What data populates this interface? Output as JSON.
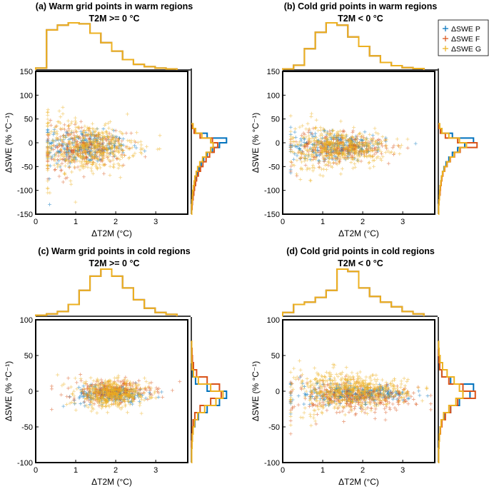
{
  "chart_data": [
    {
      "type": "scatter",
      "title": "(a) Warm grid points in warm regions",
      "subtitle": "T2M >= 0 °C",
      "xlabel": "ΔT2M (°C)",
      "ylabel": "ΔSWE (% °C⁻¹)",
      "xlim": [
        0,
        3.8
      ],
      "ylim": [
        -150,
        150
      ],
      "xticks": [
        0,
        1,
        2,
        3
      ],
      "yticks": [
        -150,
        -100,
        -50,
        0,
        50,
        100,
        150
      ],
      "series": [
        {
          "name": "ΔSWE P",
          "cx": 1.2,
          "sx": 0.55,
          "cy": -8,
          "sy": 20,
          "n": 260,
          "xrange": [
            0.3,
            3.4
          ]
        },
        {
          "name": "ΔSWE F",
          "cx": 1.2,
          "sx": 0.55,
          "cy": -12,
          "sy": 24,
          "n": 260,
          "xrange": [
            0.3,
            3.4
          ]
        },
        {
          "name": "ΔSWE G",
          "cx": 1.3,
          "sx": 0.6,
          "cy": -10,
          "sy": 30,
          "n": 520,
          "xrange": [
            0.3,
            3.6
          ]
        }
      ],
      "x_histogram": [
        0.04,
        0.85,
        0.95,
        1.0,
        0.98,
        0.78,
        0.58,
        0.4,
        0.22,
        0.12,
        0.07,
        0.04,
        0.02
      ],
      "y_histogram": [
        {
          "name": "ΔSWE P",
          "bins": [
            -150,
            -140,
            -130,
            -120,
            -110,
            -100,
            -90,
            -80,
            -70,
            -60,
            -50,
            -40,
            -30,
            -20,
            -10,
            0,
            10,
            20,
            30,
            40
          ],
          "counts": [
            0.01,
            0.02,
            0.03,
            0.04,
            0.06,
            0.08,
            0.1,
            0.13,
            0.17,
            0.22,
            0.28,
            0.35,
            0.45,
            0.6,
            0.8,
            1.0,
            0.45,
            0.12,
            0.04
          ]
        },
        {
          "name": "ΔSWE F",
          "bins": [
            -150,
            -140,
            -130,
            -120,
            -110,
            -100,
            -90,
            -80,
            -70,
            -60,
            -50,
            -40,
            -30,
            -20,
            -10,
            0,
            10,
            20,
            30,
            40
          ],
          "counts": [
            0.01,
            0.02,
            0.03,
            0.05,
            0.07,
            0.09,
            0.12,
            0.15,
            0.2,
            0.26,
            0.33,
            0.42,
            0.52,
            0.65,
            0.75,
            0.6,
            0.25,
            0.08,
            0.03
          ]
        },
        {
          "name": "ΔSWE G",
          "bins": [
            -150,
            -140,
            -130,
            -120,
            -110,
            -100,
            -90,
            -80,
            -70,
            -60,
            -50,
            -40,
            -30,
            -20,
            -10,
            0,
            10,
            20,
            30,
            40
          ],
          "counts": [
            0.01,
            0.01,
            0.02,
            0.03,
            0.04,
            0.06,
            0.08,
            0.1,
            0.14,
            0.18,
            0.24,
            0.32,
            0.42,
            0.55,
            0.62,
            0.55,
            0.3,
            0.12,
            0.05
          ]
        }
      ]
    },
    {
      "type": "scatter",
      "title": "(b) Cold grid points in warm regions",
      "subtitle": "T2M < 0 °C",
      "xlabel": "ΔT2M (°C)",
      "ylabel": "ΔSWE (% °C⁻¹)",
      "xlim": [
        0,
        3.8
      ],
      "ylim": [
        -150,
        150
      ],
      "xticks": [
        0,
        1,
        2,
        3
      ],
      "yticks": [
        -150,
        -100,
        -50,
        0,
        50,
        100,
        150
      ],
      "series": [
        {
          "name": "ΔSWE P",
          "cx": 1.4,
          "sx": 0.6,
          "cy": -6,
          "sy": 16,
          "n": 260,
          "xrange": [
            0.2,
            3.5
          ]
        },
        {
          "name": "ΔSWE F",
          "cx": 1.4,
          "sx": 0.6,
          "cy": -10,
          "sy": 18,
          "n": 260,
          "xrange": [
            0.2,
            3.5
          ]
        },
        {
          "name": "ΔSWE G",
          "cx": 1.4,
          "sx": 0.6,
          "cy": -10,
          "sy": 24,
          "n": 520,
          "xrange": [
            0.2,
            3.6
          ]
        }
      ],
      "x_histogram": [
        0.02,
        0.1,
        0.45,
        0.8,
        1.0,
        0.95,
        0.7,
        0.5,
        0.3,
        0.16,
        0.09,
        0.05,
        0.03
      ],
      "y_histogram": [
        {
          "name": "ΔSWE P",
          "bins": [
            -150,
            -140,
            -130,
            -120,
            -110,
            -100,
            -90,
            -80,
            -70,
            -60,
            -50,
            -40,
            -30,
            -20,
            -10,
            0,
            10,
            20,
            30,
            40
          ],
          "counts": [
            0.01,
            0.01,
            0.02,
            0.03,
            0.04,
            0.05,
            0.07,
            0.09,
            0.12,
            0.16,
            0.22,
            0.3,
            0.4,
            0.55,
            0.75,
            1.0,
            0.4,
            0.1,
            0.03
          ]
        },
        {
          "name": "ΔSWE F",
          "bins": [
            -150,
            -140,
            -130,
            -120,
            -110,
            -100,
            -90,
            -80,
            -70,
            -60,
            -50,
            -40,
            -30,
            -20,
            -10,
            0,
            10,
            20,
            30,
            40
          ],
          "counts": [
            0.01,
            0.01,
            0.02,
            0.03,
            0.05,
            0.06,
            0.08,
            0.1,
            0.13,
            0.18,
            0.25,
            0.34,
            0.46,
            0.62,
            1.1,
            0.55,
            0.2,
            0.06,
            0.02
          ]
        },
        {
          "name": "ΔSWE G",
          "bins": [
            -150,
            -140,
            -130,
            -120,
            -110,
            -100,
            -90,
            -80,
            -70,
            -60,
            -50,
            -40,
            -30,
            -20,
            -10,
            0,
            10,
            20,
            30,
            40
          ],
          "counts": [
            0.01,
            0.01,
            0.02,
            0.03,
            0.04,
            0.05,
            0.07,
            0.09,
            0.12,
            0.17,
            0.24,
            0.33,
            0.45,
            0.6,
            0.8,
            0.6,
            0.3,
            0.1,
            0.04
          ]
        }
      ]
    },
    {
      "type": "scatter",
      "title": "(c) Warm grid points in cold regions",
      "subtitle": "T2M >= 0 °C",
      "xlabel": "ΔT2M (°C)",
      "ylabel": "ΔSWE (% °C⁻¹)",
      "xlim": [
        0,
        3.8
      ],
      "ylim": [
        -100,
        100
      ],
      "xticks": [
        0,
        1,
        2,
        3
      ],
      "yticks": [
        -100,
        -50,
        0,
        50,
        100
      ],
      "series": [
        {
          "name": "ΔSWE P",
          "cx": 1.9,
          "sx": 0.45,
          "cy": -4,
          "sy": 8,
          "n": 220,
          "xrange": [
            0.4,
            3.5
          ]
        },
        {
          "name": "ΔSWE F",
          "cx": 1.9,
          "sx": 0.5,
          "cy": 0,
          "sy": 10,
          "n": 260,
          "xrange": [
            0.4,
            3.6
          ]
        },
        {
          "name": "ΔSWE G",
          "cx": 1.9,
          "sx": 0.45,
          "cy": -4,
          "sy": 12,
          "n": 460,
          "xrange": [
            0.4,
            3.5
          ]
        }
      ],
      "x_histogram": [
        0.02,
        0.05,
        0.1,
        0.25,
        0.55,
        0.85,
        1.0,
        0.85,
        0.6,
        0.35,
        0.17,
        0.08,
        0.04
      ],
      "y_histogram": [
        {
          "name": "ΔSWE P",
          "bins": [
            -100,
            -90,
            -80,
            -70,
            -60,
            -50,
            -40,
            -30,
            -20,
            -10,
            0,
            10,
            20,
            30,
            40,
            50,
            60,
            70
          ],
          "counts": [
            0.01,
            0.01,
            0.02,
            0.03,
            0.05,
            0.1,
            0.2,
            0.45,
            0.8,
            1.0,
            0.45,
            0.12,
            0.04,
            0.02,
            0.01,
            0.01,
            0.01
          ]
        },
        {
          "name": "ΔSWE F",
          "bins": [
            -100,
            -90,
            -80,
            -70,
            -60,
            -50,
            -40,
            -30,
            -20,
            -10,
            0,
            10,
            20,
            30,
            40,
            50,
            60,
            70
          ],
          "counts": [
            0.01,
            0.01,
            0.01,
            0.02,
            0.03,
            0.05,
            0.1,
            0.25,
            0.55,
            0.85,
            0.8,
            0.45,
            0.15,
            0.06,
            0.03,
            0.02,
            0.01
          ]
        },
        {
          "name": "ΔSWE G",
          "bins": [
            -100,
            -90,
            -80,
            -70,
            -60,
            -50,
            -40,
            -30,
            -20,
            -10,
            0,
            10,
            20,
            30,
            40,
            50,
            60,
            70
          ],
          "counts": [
            0.01,
            0.01,
            0.02,
            0.03,
            0.05,
            0.09,
            0.18,
            0.38,
            0.7,
            0.9,
            0.55,
            0.2,
            0.06,
            0.02,
            0.01,
            0.01,
            0.01
          ]
        }
      ]
    },
    {
      "type": "scatter",
      "title": "(d) Cold grid points in cold regions",
      "subtitle": "T2M < 0 °C",
      "xlabel": "ΔT2M (°C)",
      "ylabel": "ΔSWE (% °C⁻¹)",
      "xlim": [
        0,
        3.8
      ],
      "ylim": [
        -100,
        100
      ],
      "xticks": [
        0,
        1,
        2,
        3
      ],
      "yticks": [
        -100,
        -50,
        0,
        50,
        100
      ],
      "series": [
        {
          "name": "ΔSWE P",
          "cx": 1.8,
          "sx": 0.7,
          "cy": -4,
          "sy": 8,
          "n": 280,
          "xrange": [
            0.2,
            3.7
          ]
        },
        {
          "name": "ΔSWE F",
          "cx": 1.8,
          "sx": 0.75,
          "cy": -8,
          "sy": 14,
          "n": 320,
          "xrange": [
            0.2,
            3.7
          ]
        },
        {
          "name": "ΔSWE G",
          "cx": 1.7,
          "sx": 0.7,
          "cy": 0,
          "sy": 16,
          "n": 600,
          "xrange": [
            0.2,
            3.6
          ]
        }
      ],
      "x_histogram": [
        0.08,
        0.25,
        0.3,
        0.4,
        0.55,
        1.0,
        0.95,
        0.6,
        0.42,
        0.3,
        0.2,
        0.1,
        0.05
      ],
      "y_histogram": [
        {
          "name": "ΔSWE P",
          "bins": [
            -100,
            -90,
            -80,
            -70,
            -60,
            -50,
            -40,
            -30,
            -20,
            -10,
            0,
            10,
            20,
            30,
            40,
            50,
            60,
            70
          ],
          "counts": [
            0.01,
            0.01,
            0.02,
            0.03,
            0.05,
            0.09,
            0.18,
            0.35,
            0.6,
            0.9,
            1.0,
            0.35,
            0.1,
            0.04,
            0.02,
            0.01,
            0.01
          ]
        },
        {
          "name": "ΔSWE F",
          "bins": [
            -100,
            -90,
            -80,
            -70,
            -60,
            -50,
            -40,
            -30,
            -20,
            -10,
            0,
            10,
            20,
            30,
            40,
            50,
            60,
            70
          ],
          "counts": [
            0.01,
            0.01,
            0.02,
            0.03,
            0.06,
            0.1,
            0.2,
            0.35,
            0.55,
            1.05,
            0.7,
            0.3,
            0.1,
            0.04,
            0.02,
            0.01,
            0.01
          ]
        },
        {
          "name": "ΔSWE G",
          "bins": [
            -100,
            -90,
            -80,
            -70,
            -60,
            -50,
            -40,
            -30,
            -20,
            -10,
            0,
            10,
            20,
            30,
            40,
            50,
            60,
            70
          ],
          "counts": [
            0.01,
            0.01,
            0.02,
            0.03,
            0.05,
            0.08,
            0.15,
            0.3,
            0.5,
            0.7,
            0.6,
            0.45,
            0.25,
            0.12,
            0.05,
            0.02,
            0.01
          ]
        }
      ]
    }
  ],
  "legend": {
    "position": "top-right",
    "entries": [
      "ΔSWE P",
      "ΔSWE F",
      "ΔSWE G"
    ]
  },
  "colors": {
    "ΔSWE P": "#0072BD",
    "ΔSWE F": "#D95319",
    "ΔSWE G": "#EDB120"
  }
}
